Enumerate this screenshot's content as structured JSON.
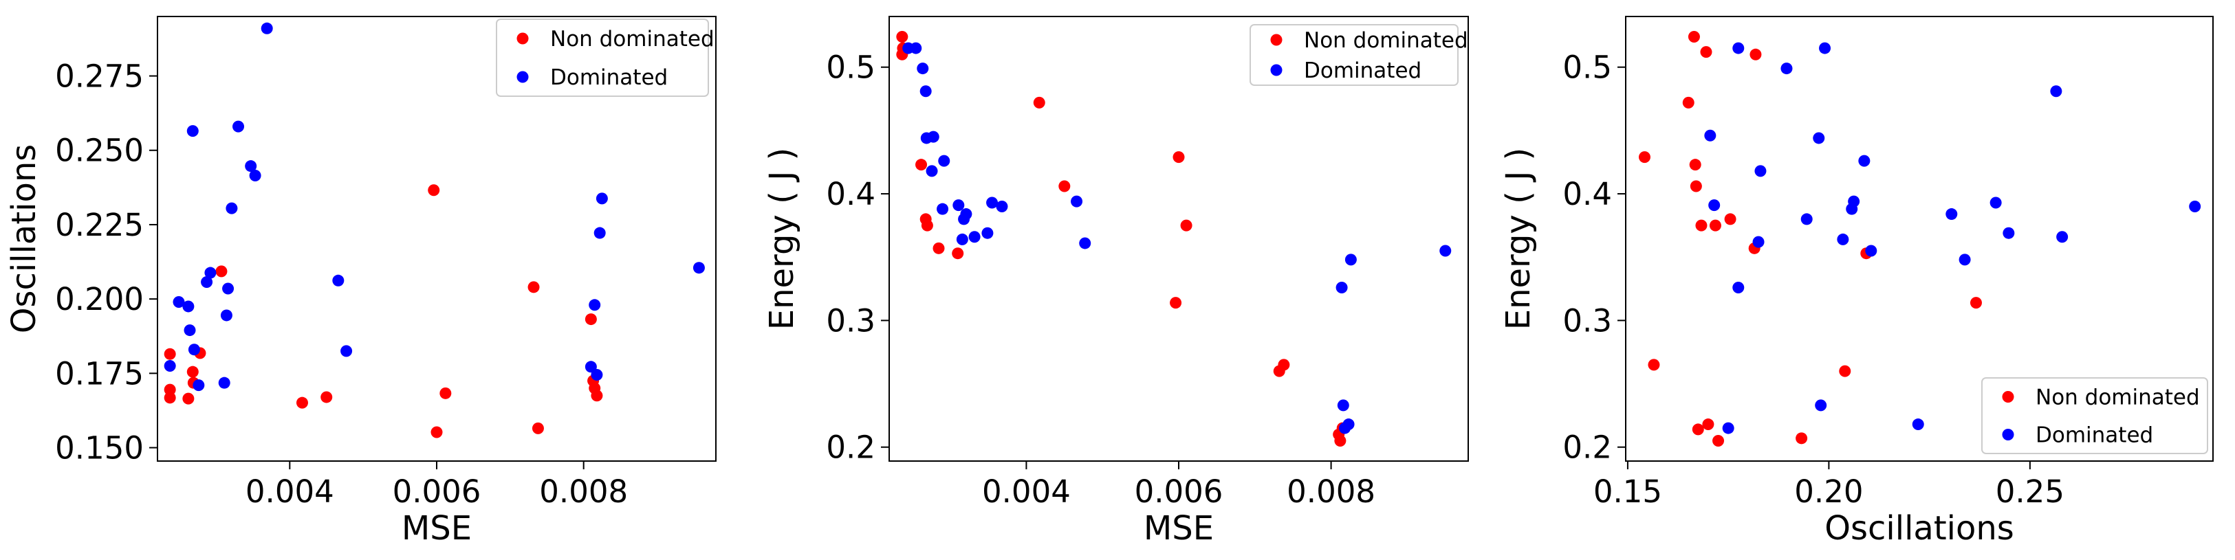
{
  "colors": {
    "non_dominated": "#ff0000",
    "dominated": "#0000ff"
  },
  "chart_data": [
    {
      "type": "scatter",
      "xlabel": "MSE",
      "ylabel": "Oscillations",
      "xlim": [
        0.0022,
        0.0098
      ],
      "ylim": [
        0.1455,
        0.295
      ],
      "xticks": [
        0.004,
        0.006,
        0.008
      ],
      "xtick_labels": [
        "0.004",
        "0.006",
        "0.008"
      ],
      "yticks": [
        0.15,
        0.175,
        0.2,
        0.225,
        0.25,
        0.275
      ],
      "ytick_labels": [
        "0.150",
        "0.175",
        "0.200",
        "0.225",
        "0.250",
        "0.275"
      ],
      "legend_position": "top-right",
      "series": [
        {
          "name": "Non dominated",
          "color_key": "non_dominated",
          "points": [
            [
              0.00237,
              0.1815
            ],
            [
              0.00237,
              0.1695
            ],
            [
              0.00237,
              0.1668
            ],
            [
              0.00262,
              0.1665
            ],
            [
              0.00268,
              0.1755
            ],
            [
              0.00269,
              0.1718
            ],
            [
              0.00278,
              0.1818
            ],
            [
              0.00307,
              0.2093
            ],
            [
              0.00417,
              0.1651
            ],
            [
              0.0045,
              0.167
            ],
            [
              0.00596,
              0.2366
            ],
            [
              0.006,
              0.1552
            ],
            [
              0.00612,
              0.1683
            ],
            [
              0.00732,
              0.204
            ],
            [
              0.00738,
              0.1565
            ],
            [
              0.0081,
              0.1932
            ],
            [
              0.00813,
              0.1725
            ],
            [
              0.00815,
              0.17
            ],
            [
              0.00818,
              0.1675
            ]
          ]
        },
        {
          "name": "Dominated",
          "color_key": "dominated",
          "points": [
            [
              0.00237,
              0.1775
            ],
            [
              0.00249,
              0.199
            ],
            [
              0.00262,
              0.1975
            ],
            [
              0.00264,
              0.1895
            ],
            [
              0.00268,
              0.2565
            ],
            [
              0.0027,
              0.183
            ],
            [
              0.00276,
              0.171
            ],
            [
              0.00287,
              0.2057
            ],
            [
              0.00292,
              0.2088
            ],
            [
              0.00311,
              0.1718
            ],
            [
              0.00314,
              0.1945
            ],
            [
              0.00316,
              0.2035
            ],
            [
              0.00321,
              0.2305
            ],
            [
              0.0033,
              0.258
            ],
            [
              0.00347,
              0.2447
            ],
            [
              0.00353,
              0.2415
            ],
            [
              0.00369,
              0.291
            ],
            [
              0.00466,
              0.2062
            ],
            [
              0.00477,
              0.1825
            ],
            [
              0.0081,
              0.1772
            ],
            [
              0.00815,
              0.198
            ],
            [
              0.00818,
              0.1745
            ],
            [
              0.00822,
              0.2222
            ],
            [
              0.00825,
              0.2338
            ],
            [
              0.00957,
              0.2105
            ]
          ]
        }
      ]
    },
    {
      "type": "scatter",
      "xlabel": "MSE",
      "ylabel": "Energy ( J )",
      "xlim": [
        0.0022,
        0.0098
      ],
      "ylim": [
        0.189,
        0.54
      ],
      "xticks": [
        0.004,
        0.006,
        0.008
      ],
      "xtick_labels": [
        "0.004",
        "0.006",
        "0.008"
      ],
      "yticks": [
        0.2,
        0.3,
        0.4,
        0.5
      ],
      "ytick_labels": [
        "0.2",
        "0.3",
        "0.4",
        "0.5"
      ],
      "legend_position": "top-right",
      "series": [
        {
          "name": "Non dominated",
          "color_key": "non_dominated",
          "points": [
            [
              0.00237,
              0.524
            ],
            [
              0.00237,
              0.51
            ],
            [
              0.00238,
              0.515
            ],
            [
              0.00262,
              0.423
            ],
            [
              0.00268,
              0.38
            ],
            [
              0.0027,
              0.375
            ],
            [
              0.00285,
              0.357
            ],
            [
              0.0031,
              0.353
            ],
            [
              0.00417,
              0.472
            ],
            [
              0.0045,
              0.406
            ],
            [
              0.00596,
              0.314
            ],
            [
              0.006,
              0.429
            ],
            [
              0.0061,
              0.375
            ],
            [
              0.00732,
              0.26
            ],
            [
              0.00738,
              0.265
            ],
            [
              0.0081,
              0.21
            ],
            [
              0.00812,
              0.205
            ],
            [
              0.00815,
              0.215
            ]
          ]
        },
        {
          "name": "Dominated",
          "color_key": "dominated",
          "points": [
            [
              0.00245,
              0.515
            ],
            [
              0.00255,
              0.515
            ],
            [
              0.00264,
              0.499
            ],
            [
              0.00268,
              0.481
            ],
            [
              0.00269,
              0.444
            ],
            [
              0.00278,
              0.445
            ],
            [
              0.00276,
              0.418
            ],
            [
              0.0029,
              0.388
            ],
            [
              0.00292,
              0.426
            ],
            [
              0.00311,
              0.391
            ],
            [
              0.00316,
              0.364
            ],
            [
              0.00318,
              0.38
            ],
            [
              0.00321,
              0.384
            ],
            [
              0.00332,
              0.366
            ],
            [
              0.00349,
              0.369
            ],
            [
              0.00355,
              0.393
            ],
            [
              0.00368,
              0.39
            ],
            [
              0.00466,
              0.394
            ],
            [
              0.00477,
              0.361
            ],
            [
              0.00814,
              0.326
            ],
            [
              0.00816,
              0.233
            ],
            [
              0.00818,
              0.215
            ],
            [
              0.00823,
              0.218
            ],
            [
              0.00826,
              0.348
            ],
            [
              0.0095,
              0.355
            ]
          ]
        }
      ]
    },
    {
      "type": "scatter",
      "xlabel": "Oscillations",
      "ylabel": "Energy ( J )",
      "xlim": [
        0.1495,
        0.2955
      ],
      "ylim": [
        0.189,
        0.54
      ],
      "xticks": [
        0.15,
        0.2,
        0.25
      ],
      "xtick_labels": [
        "0.15",
        "0.20",
        "0.25"
      ],
      "yticks": [
        0.2,
        0.3,
        0.4,
        0.5
      ],
      "ytick_labels": [
        "0.2",
        "0.3",
        "0.4",
        "0.5"
      ],
      "legend_position": "bottom-right",
      "series": [
        {
          "name": "Non dominated",
          "color_key": "non_dominated",
          "points": [
            [
              0.1542,
              0.429
            ],
            [
              0.1565,
              0.265
            ],
            [
              0.1651,
              0.472
            ],
            [
              0.1665,
              0.524
            ],
            [
              0.1668,
              0.423
            ],
            [
              0.167,
              0.406
            ],
            [
              0.1675,
              0.214
            ],
            [
              0.1683,
              0.375
            ],
            [
              0.1695,
              0.512
            ],
            [
              0.17,
              0.218
            ],
            [
              0.1718,
              0.375
            ],
            [
              0.1725,
              0.205
            ],
            [
              0.1755,
              0.38
            ],
            [
              0.1815,
              0.357
            ],
            [
              0.1818,
              0.51
            ],
            [
              0.1932,
              0.207
            ],
            [
              0.204,
              0.26
            ],
            [
              0.2093,
              0.353
            ],
            [
              0.2366,
              0.314
            ]
          ]
        },
        {
          "name": "Dominated",
          "color_key": "dominated",
          "points": [
            [
              0.1705,
              0.446
            ],
            [
              0.1715,
              0.391
            ],
            [
              0.175,
              0.215
            ],
            [
              0.1775,
              0.515
            ],
            [
              0.1775,
              0.326
            ],
            [
              0.1825,
              0.362
            ],
            [
              0.183,
              0.418
            ],
            [
              0.1895,
              0.499
            ],
            [
              0.1945,
              0.38
            ],
            [
              0.1975,
              0.444
            ],
            [
              0.198,
              0.233
            ],
            [
              0.199,
              0.515
            ],
            [
              0.2035,
              0.364
            ],
            [
              0.2057,
              0.388
            ],
            [
              0.2062,
              0.394
            ],
            [
              0.2088,
              0.426
            ],
            [
              0.2105,
              0.355
            ],
            [
              0.2222,
              0.218
            ],
            [
              0.2305,
              0.384
            ],
            [
              0.2338,
              0.348
            ],
            [
              0.2415,
              0.393
            ],
            [
              0.2447,
              0.369
            ],
            [
              0.2565,
              0.481
            ],
            [
              0.258,
              0.366
            ],
            [
              0.291,
              0.39
            ]
          ]
        }
      ]
    }
  ]
}
